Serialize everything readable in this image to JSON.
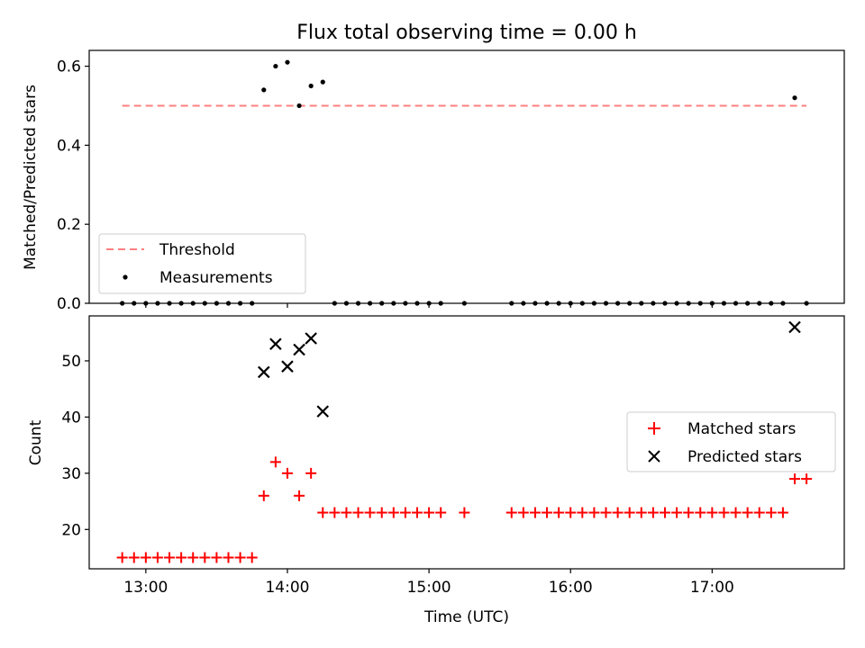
{
  "figure": {
    "title": "Flux total observing time = 0.00 h"
  },
  "chart_data": [
    {
      "type": "scatter",
      "ylabel": "Matched/Predicted stars",
      "xlabel": "",
      "ylim": [
        0.0,
        0.64
      ],
      "yticks": [
        0.0,
        0.2,
        0.4,
        0.6
      ],
      "ytick_labels": [
        "0.0",
        "0.2",
        "0.4",
        "0.6"
      ],
      "grid": false,
      "legend_position": "lower-left",
      "series": [
        {
          "name": "Threshold",
          "kind": "dashed-line",
          "color": "#ff7f7f",
          "x": [
            "12:50",
            "17:40"
          ],
          "y": [
            0.5,
            0.5
          ]
        },
        {
          "name": "Measurements",
          "kind": "dots",
          "color": "#000000",
          "x": [
            "12:50",
            "12:55",
            "13:00",
            "13:05",
            "13:10",
            "13:15",
            "13:20",
            "13:25",
            "13:30",
            "13:35",
            "13:40",
            "13:45",
            "13:50",
            "13:55",
            "14:00",
            "14:05",
            "14:10",
            "14:15",
            "14:20",
            "14:25",
            "14:30",
            "14:35",
            "14:40",
            "14:45",
            "14:50",
            "14:55",
            "15:00",
            "15:05",
            "15:15",
            "15:35",
            "15:40",
            "15:45",
            "15:50",
            "15:55",
            "16:00",
            "16:05",
            "16:10",
            "16:15",
            "16:20",
            "16:25",
            "16:30",
            "16:35",
            "16:40",
            "16:45",
            "16:50",
            "16:55",
            "17:00",
            "17:05",
            "17:10",
            "17:15",
            "17:20",
            "17:25",
            "17:30",
            "17:35",
            "17:40"
          ],
          "y": [
            0.0,
            0.0,
            0.0,
            0.0,
            0.0,
            0.0,
            0.0,
            0.0,
            0.0,
            0.0,
            0.0,
            0.0,
            0.54,
            0.6,
            0.61,
            0.5,
            0.55,
            0.56,
            0.0,
            0.0,
            0.0,
            0.0,
            0.0,
            0.0,
            0.0,
            0.0,
            0.0,
            0.0,
            0.0,
            0.0,
            0.0,
            0.0,
            0.0,
            0.0,
            0.0,
            0.0,
            0.0,
            0.0,
            0.0,
            0.0,
            0.0,
            0.0,
            0.0,
            0.0,
            0.0,
            0.0,
            0.0,
            0.0,
            0.0,
            0.0,
            0.0,
            0.0,
            0.0,
            0.52,
            0.0
          ]
        }
      ]
    },
    {
      "type": "scatter",
      "ylabel": "Count",
      "xlabel": "Time (UTC)",
      "ylim": [
        13.0,
        58.0
      ],
      "yticks": [
        20,
        30,
        40,
        50
      ],
      "ytick_labels": [
        "20",
        "30",
        "40",
        "50"
      ],
      "xticks": [
        "13:00",
        "14:00",
        "15:00",
        "16:00",
        "17:00"
      ],
      "xlim": [
        "12:36",
        "17:56"
      ],
      "grid": false,
      "legend_position": "center-right",
      "series": [
        {
          "name": "Matched stars",
          "kind": "plus",
          "color": "#ff0000",
          "x": [
            "12:50",
            "12:55",
            "13:00",
            "13:05",
            "13:10",
            "13:15",
            "13:20",
            "13:25",
            "13:30",
            "13:35",
            "13:40",
            "13:45",
            "13:50",
            "13:55",
            "14:00",
            "14:05",
            "14:10",
            "14:15",
            "14:20",
            "14:25",
            "14:30",
            "14:35",
            "14:40",
            "14:45",
            "14:50",
            "14:55",
            "15:00",
            "15:05",
            "15:15",
            "15:35",
            "15:40",
            "15:45",
            "15:50",
            "15:55",
            "16:00",
            "16:05",
            "16:10",
            "16:15",
            "16:20",
            "16:25",
            "16:30",
            "16:35",
            "16:40",
            "16:45",
            "16:50",
            "16:55",
            "17:00",
            "17:05",
            "17:10",
            "17:15",
            "17:20",
            "17:25",
            "17:30",
            "17:35",
            "17:40"
          ],
          "y": [
            15,
            15,
            15,
            15,
            15,
            15,
            15,
            15,
            15,
            15,
            15,
            15,
            26,
            32,
            30,
            26,
            30,
            23,
            23,
            23,
            23,
            23,
            23,
            23,
            23,
            23,
            23,
            23,
            23,
            23,
            23,
            23,
            23,
            23,
            23,
            23,
            23,
            23,
            23,
            23,
            23,
            23,
            23,
            23,
            23,
            23,
            23,
            23,
            23,
            23,
            23,
            23,
            23,
            29,
            29
          ]
        },
        {
          "name": "Predicted stars",
          "kind": "x",
          "color": "#000000",
          "x": [
            "13:50",
            "13:55",
            "14:00",
            "14:05",
            "14:10",
            "14:15",
            "17:35"
          ],
          "y": [
            48,
            53,
            49,
            52,
            54,
            41,
            56
          ]
        }
      ]
    }
  ]
}
